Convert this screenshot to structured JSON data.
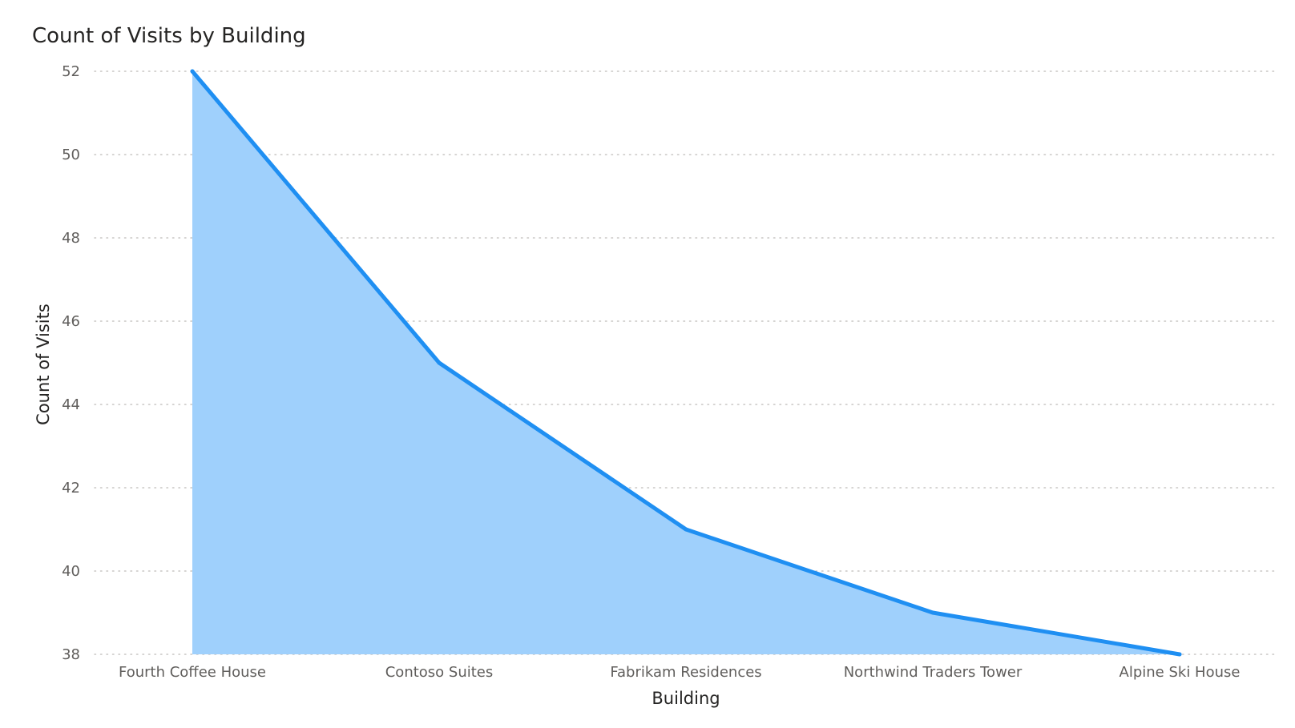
{
  "chart_data": {
    "type": "area",
    "title": "Count of Visits by Building",
    "xlabel": "Building",
    "ylabel": "Count of Visits",
    "categories": [
      "Fourth Coffee House",
      "Contoso Suites",
      "Fabrikam Residences",
      "Northwind Traders Tower",
      "Alpine Ski House"
    ],
    "series": [
      {
        "values": [
          52,
          45,
          41,
          39,
          38
        ]
      }
    ],
    "ylim": [
      38,
      52
    ],
    "yticks": [
      38,
      40,
      42,
      44,
      46,
      48,
      50,
      52
    ],
    "grid": true,
    "legend": "none",
    "colors": {
      "line": "#1f8ff2",
      "fill": "#9fd0fc",
      "grid": "#c8c6c4"
    }
  }
}
